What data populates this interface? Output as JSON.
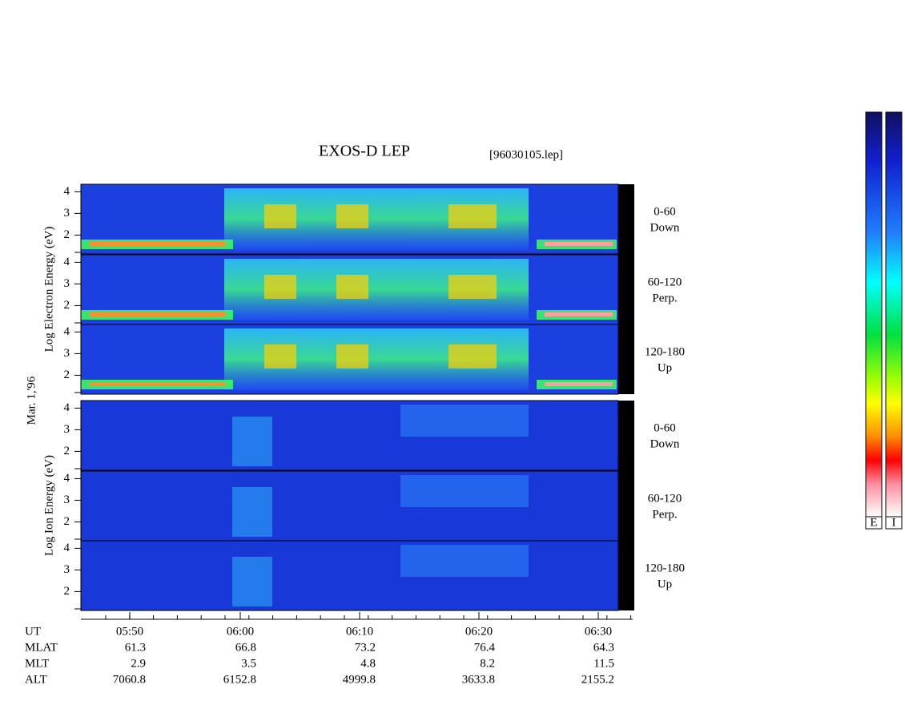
{
  "title": "EXOS-D LEP",
  "file": "[96030105.lep]",
  "date": "Mar. 1,'96",
  "groups": [
    {
      "axis_label": "Log Electron Energy (eV)",
      "panels": [
        {
          "angle": "0-60",
          "direction": "Down",
          "yticks": [
            4,
            3,
            2
          ]
        },
        {
          "angle": "60-120",
          "direction": "Perp.",
          "yticks": [
            4,
            3,
            2
          ]
        },
        {
          "angle": "120-180",
          "direction": "Up",
          "yticks": [
            4,
            3,
            2
          ]
        }
      ]
    },
    {
      "axis_label": "Log Ion Energy (eV)",
      "panels": [
        {
          "angle": "0-60",
          "direction": "Down",
          "yticks": [
            4,
            3,
            2
          ]
        },
        {
          "angle": "60-120",
          "direction": "Perp.",
          "yticks": [
            4,
            3,
            2
          ]
        },
        {
          "angle": "120-180",
          "direction": "Up",
          "yticks": [
            4,
            3,
            2
          ]
        }
      ]
    }
  ],
  "ephemeris": {
    "rows": [
      {
        "label": "UT",
        "values": [
          "05:50",
          "06:00",
          "06:10",
          "06:20",
          "06:30"
        ]
      },
      {
        "label": "MLAT",
        "values": [
          "61.3",
          "66.8",
          "73.2",
          "76.4",
          "64.3"
        ]
      },
      {
        "label": "MLT",
        "values": [
          "2.9",
          "3.5",
          "4.8",
          "8.2",
          "11.5"
        ]
      },
      {
        "label": "ALT",
        "values": [
          "7060.8",
          "6152.8",
          "4999.8",
          "3633.8",
          "2155.2"
        ]
      }
    ]
  },
  "colorbar": {
    "labels": [
      "E",
      "I"
    ]
  }
}
